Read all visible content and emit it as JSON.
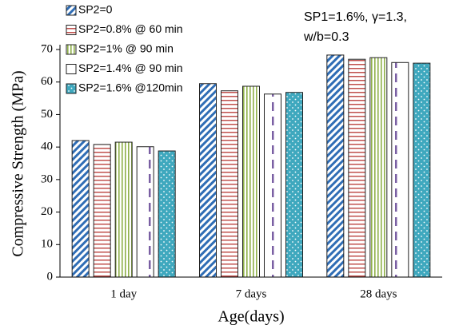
{
  "chart_data": {
    "type": "bar",
    "x_label": "Age(days)",
    "y_label": "Compressive Strength (MPa)",
    "annotations": [
      "SP1=1.6%, γ=1.3,",
      "w/b=0.3"
    ],
    "categories": [
      "1 day",
      "7 days",
      "28 days"
    ],
    "series": [
      {
        "name": "SP2=0",
        "color": "#2f6db5",
        "values": [
          42,
          59.5,
          68.3
        ]
      },
      {
        "name": "SP2=0.8% @ 60 min",
        "color": "#c0504d",
        "values": [
          40.8,
          57.3,
          67
        ]
      },
      {
        "name": "SP2=1% @ 90 min",
        "color": "#8fb04a",
        "values": [
          41.5,
          58.7,
          67.5
        ]
      },
      {
        "name": "SP2=1.4% @ 90 min",
        "color": "#7a5fa3",
        "values": [
          40.1,
          56.3,
          66
        ]
      },
      {
        "name": "SP2=1.6% @120min",
        "color": "#3fa8be",
        "values": [
          38.8,
          56.8,
          65.8
        ]
      }
    ],
    "ylim": [
      0,
      70
    ],
    "yticks": [
      0,
      10,
      20,
      30,
      40,
      50,
      60,
      70
    ],
    "legend": "upper left"
  }
}
